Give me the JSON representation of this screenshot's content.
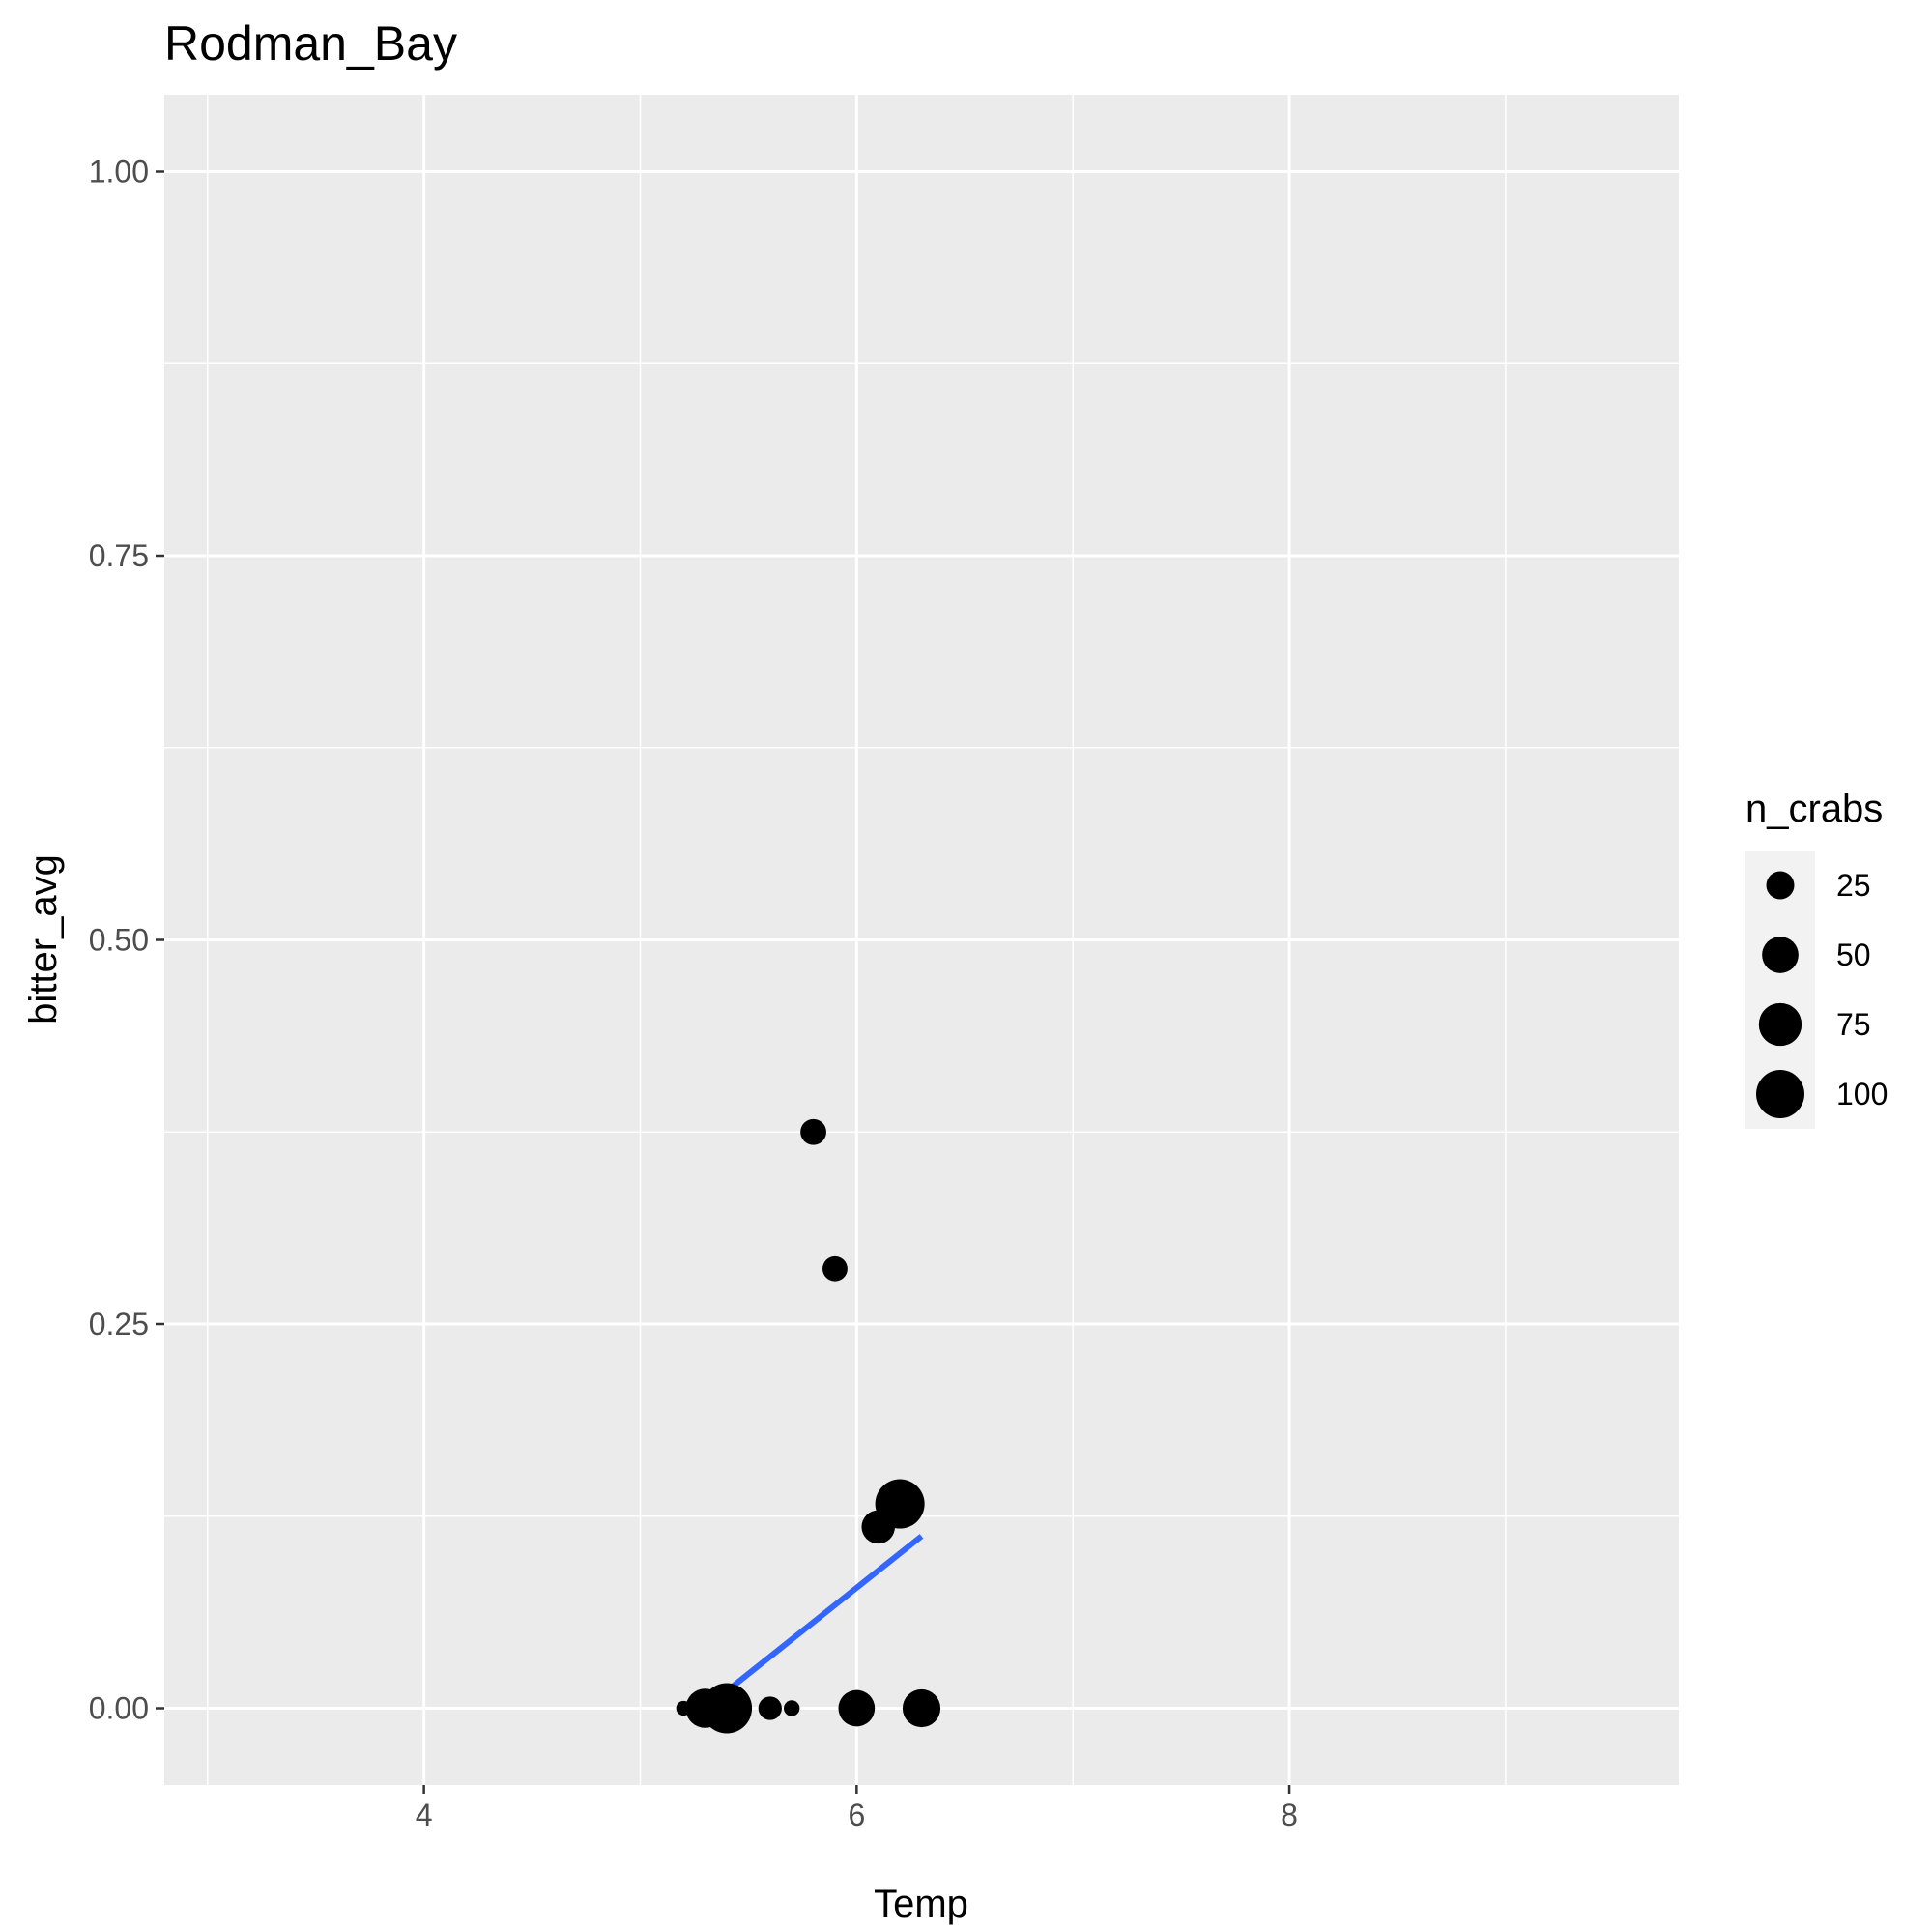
{
  "chart_data": {
    "type": "scatter",
    "title": "Rodman_Bay",
    "xlabel": "Temp",
    "ylabel": "bitter_avg",
    "xlim": [
      2.8,
      9.8
    ],
    "ylim": [
      -0.05,
      1.05
    ],
    "x_ticks": [
      4,
      6,
      8
    ],
    "x_tick_labels": [
      "4",
      "6",
      "8"
    ],
    "x_minor_ticks": [
      3,
      5,
      7,
      9
    ],
    "y_ticks": [
      0,
      0.25,
      0.5,
      0.75,
      1.0
    ],
    "y_tick_labels": [
      "0.00",
      "0.25",
      "0.50",
      "0.75",
      "1.00"
    ],
    "y_minor_ticks": [
      0.125,
      0.375,
      0.625,
      0.875
    ],
    "grid": true,
    "size_variable": "n_crabs",
    "points": [
      {
        "x": 5.2,
        "y": 0,
        "n": 3
      },
      {
        "x": 5.3,
        "y": 0,
        "n": 60
      },
      {
        "x": 5.4,
        "y": 0,
        "n": 110
      },
      {
        "x": 5.6,
        "y": 0,
        "n": 15
      },
      {
        "x": 5.7,
        "y": 0,
        "n": 4
      },
      {
        "x": 5.8,
        "y": 0.375,
        "n": 20
      },
      {
        "x": 5.9,
        "y": 0.286,
        "n": 18
      },
      {
        "x": 6.0,
        "y": 0,
        "n": 50
      },
      {
        "x": 6.1,
        "y": 0.118,
        "n": 40
      },
      {
        "x": 6.2,
        "y": 0.133,
        "n": 105
      },
      {
        "x": 6.3,
        "y": 0,
        "n": 55
      }
    ],
    "trend_line": {
      "color": "#3366ff",
      "x": [
        5.3,
        6.3
      ],
      "y": [
        0.0,
        0.112
      ]
    },
    "legend": {
      "title": "n_crabs",
      "position": "right",
      "entries": [
        {
          "label": "25",
          "value": 25
        },
        {
          "label": "50",
          "value": 50
        },
        {
          "label": "75",
          "value": 75
        },
        {
          "label": "100",
          "value": 100
        }
      ]
    },
    "colors": {
      "panel_background": "#ebebeb",
      "grid": "#ffffff",
      "point": "#000000",
      "legend_key_background": "#f2f2f2"
    }
  }
}
